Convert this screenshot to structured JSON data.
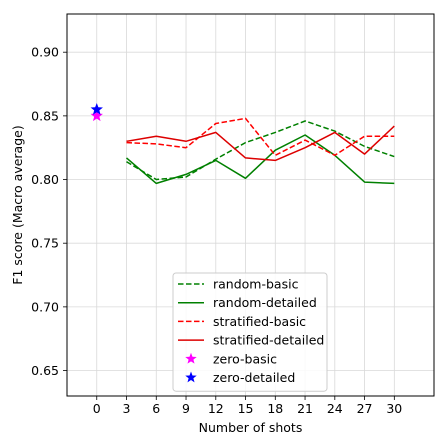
{
  "chart_data": {
    "type": "line",
    "xlabel": "Number of shots",
    "ylabel": "F1 score (Macro average)",
    "xlim": [
      -3,
      34
    ],
    "ylim": [
      0.63,
      0.93
    ],
    "xticks": [
      0,
      3,
      6,
      9,
      12,
      15,
      18,
      21,
      24,
      27,
      30
    ],
    "yticks": [
      0.65,
      0.7,
      0.75,
      0.8,
      0.85,
      0.9
    ],
    "ytick_labels": [
      "0.65",
      "0.70",
      "0.75",
      "0.80",
      "0.85",
      "0.90"
    ],
    "grid": true,
    "legend_position": "lower center",
    "x": [
      3,
      6,
      9,
      12,
      15,
      18,
      21,
      24,
      27,
      30
    ],
    "series": [
      {
        "name": "random-basic",
        "color": "#008000",
        "dash": "dashed",
        "values": [
          0.814,
          0.8,
          0.802,
          0.816,
          0.829,
          0.837,
          0.846,
          0.838,
          0.826,
          0.818
        ]
      },
      {
        "name": "random-detailed",
        "color": "#008000",
        "dash": "solid",
        "values": [
          0.817,
          0.797,
          0.804,
          0.815,
          0.801,
          0.823,
          0.835,
          0.819,
          0.798,
          0.797
        ]
      },
      {
        "name": "stratified-basic",
        "color": "#ff0000",
        "dash": "dashed",
        "values": [
          0.829,
          0.828,
          0.825,
          0.844,
          0.848,
          0.819,
          0.831,
          0.819,
          0.834,
          0.834
        ]
      },
      {
        "name": "stratified-detailed",
        "color": "#dd0000",
        "dash": "solid",
        "values": [
          0.83,
          0.834,
          0.83,
          0.837,
          0.817,
          0.815,
          0.825,
          0.837,
          0.82,
          0.842
        ]
      }
    ],
    "points": [
      {
        "name": "zero-basic",
        "color": "#ff00ff",
        "x": 0,
        "y": 0.85
      },
      {
        "name": "zero-detailed",
        "color": "#0000ff",
        "x": 0,
        "y": 0.855
      }
    ]
  }
}
